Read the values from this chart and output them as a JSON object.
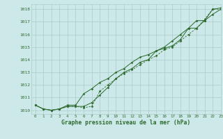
{
  "title": "Graphe pression niveau de la mer (hPa)",
  "bg_color": "#cce8e8",
  "line_color": "#2d6a2d",
  "grid_color": "#aacccc",
  "xlim": [
    -0.5,
    23
  ],
  "ylim": [
    1009.7,
    1018.4
  ],
  "yticks": [
    1010,
    1011,
    1012,
    1013,
    1014,
    1015,
    1016,
    1017,
    1018
  ],
  "xticks": [
    0,
    1,
    2,
    3,
    4,
    5,
    6,
    7,
    8,
    9,
    10,
    11,
    12,
    13,
    14,
    15,
    16,
    17,
    18,
    19,
    20,
    21,
    22,
    23
  ],
  "series1": [
    1010.4,
    1010.1,
    1010.0,
    1010.1,
    1010.3,
    1010.3,
    1010.3,
    1010.6,
    1011.2,
    1011.8,
    1012.5,
    1013.0,
    1013.3,
    1013.8,
    1014.0,
    1014.7,
    1014.9,
    1015.1,
    1015.6,
    1016.5,
    1017.1,
    1017.1,
    1018.0,
    1018.1
  ],
  "series2": [
    1010.4,
    1010.1,
    1010.0,
    1010.1,
    1010.3,
    1010.3,
    1010.2,
    1010.3,
    1011.5,
    1012.0,
    1012.5,
    1012.9,
    1013.2,
    1013.6,
    1014.0,
    1014.3,
    1014.8,
    1015.0,
    1015.5,
    1016.0,
    1016.5,
    1017.2,
    1018.0,
    1018.0
  ],
  "series3": [
    1010.4,
    1010.1,
    1010.0,
    1010.1,
    1010.4,
    1010.4,
    1011.3,
    1011.7,
    1012.2,
    1012.5,
    1013.0,
    1013.3,
    1013.8,
    1014.2,
    1014.4,
    1014.7,
    1015.0,
    1015.5,
    1016.0,
    1016.5,
    1016.5,
    1017.1,
    1017.6,
    1018.0
  ]
}
